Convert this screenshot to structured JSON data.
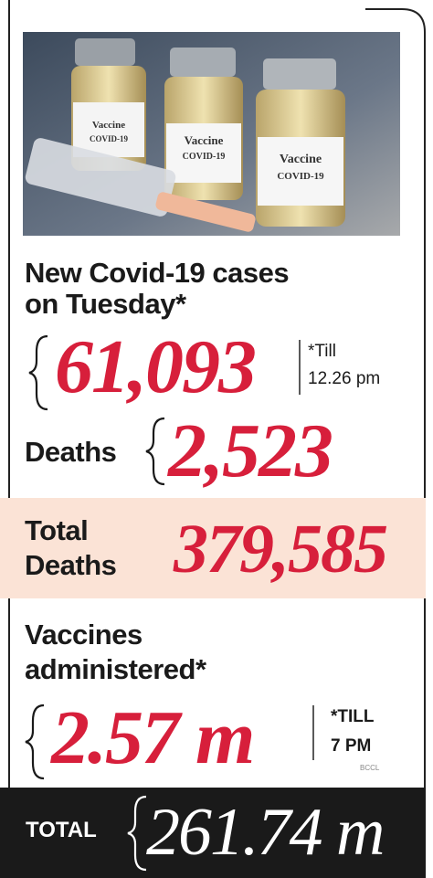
{
  "photo": {
    "label_line1": "Vaccine",
    "label_line2": "COVID-19"
  },
  "new_cases": {
    "heading_line1": "New Covid-19 cases",
    "heading_line2": "on Tuesday*",
    "value": "61,093",
    "note_line1": "*Till",
    "note_line2": "12.26 pm"
  },
  "deaths": {
    "heading": "Deaths",
    "value": "2,523"
  },
  "total_deaths": {
    "heading_line1": "Total",
    "heading_line2": "Deaths",
    "value": "379,585"
  },
  "vaccines": {
    "heading_line1": "Vaccines",
    "heading_line2": "administered*",
    "value": "2.57 m",
    "note_line1": "*TILL",
    "note_line2": "7 PM"
  },
  "watermark": "BCCL",
  "total": {
    "heading": "TOTAL",
    "value": "261.74 m"
  }
}
